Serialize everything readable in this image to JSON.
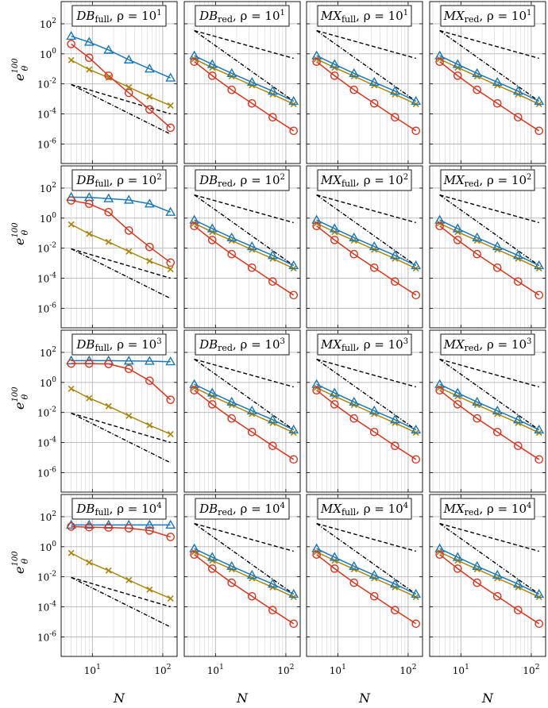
{
  "chart_data": {
    "type": "line",
    "xscale": "log",
    "yscale": "log",
    "xlim": [
      3.6,
      160
    ],
    "ylim": [
      5e-08,
      3000
    ],
    "grid": true,
    "xlabel": "N",
    "ylabel_base": "e",
    "ylabel_sub": "θ",
    "ylabel_sup": "100",
    "x_ticks": [
      {
        "base": "10",
        "exp": "1"
      },
      {
        "base": "10",
        "exp": "2"
      }
    ],
    "y_ticks": [
      {
        "base": "10",
        "exp": "2"
      },
      {
        "base": "10",
        "exp": "0"
      },
      {
        "base": "10",
        "exp": "-2"
      },
      {
        "base": "10",
        "exp": "-4"
      },
      {
        "base": "10",
        "exp": "-6"
      }
    ],
    "x": [
      5,
      9,
      17,
      33,
      65,
      129
    ],
    "series_colors": {
      "triangle": "#1a78b8",
      "circle": "#d8351f",
      "cross": "#a7860b",
      "ref": "#000000"
    },
    "panels": [
      {
        "row": 0,
        "col": 0,
        "title_main": "DB",
        "title_sub": "full",
        "title_rho": ", ρ = 10",
        "title_exp": "1",
        "triangle": [
          15,
          6,
          1.8,
          0.4,
          0.1,
          0.025
        ],
        "circle": [
          4.5,
          0.55,
          0.035,
          0.0025,
          0.0002,
          1.2e-05
        ],
        "cross": [
          0.38,
          0.09,
          0.026,
          0.006,
          0.0014,
          0.00036
        ],
        "ref_dash": [
          0.009,
          0.0001
        ],
        "ref_dashdot": [
          0.009,
          4.5e-06
        ]
      },
      {
        "row": 0,
        "col": 1,
        "title_main": "DB",
        "title_sub": "red",
        "title_rho": ", ρ = 10",
        "title_exp": "1",
        "triangle": [
          0.75,
          0.2,
          0.05,
          0.013,
          0.0033,
          0.0007
        ],
        "circle": [
          0.3,
          0.035,
          0.004,
          0.0005,
          6e-05,
          7.5e-06
        ],
        "cross": [
          0.45,
          0.12,
          0.032,
          0.008,
          0.002,
          0.00045
        ],
        "ref_dash": [
          35,
          0.5
        ],
        "ref_dashdot": [
          35,
          0.0007
        ]
      },
      {
        "row": 0,
        "col": 2,
        "title_main": "MX",
        "title_sub": "full",
        "title_rho": ", ρ = 10",
        "title_exp": "1",
        "triangle": [
          0.75,
          0.2,
          0.05,
          0.013,
          0.0033,
          0.0007
        ],
        "circle": [
          0.3,
          0.035,
          0.004,
          0.0005,
          6e-05,
          7.5e-06
        ],
        "cross": [
          0.45,
          0.12,
          0.032,
          0.008,
          0.002,
          0.00045
        ],
        "ref_dash": [
          35,
          0.5
        ],
        "ref_dashdot": [
          35,
          0.0007
        ]
      },
      {
        "row": 0,
        "col": 3,
        "title_main": "MX",
        "title_sub": "red",
        "title_rho": ", ρ = 10",
        "title_exp": "1",
        "triangle": [
          0.75,
          0.2,
          0.05,
          0.013,
          0.0033,
          0.0007
        ],
        "circle": [
          0.3,
          0.035,
          0.004,
          0.0005,
          6e-05,
          7.5e-06
        ],
        "cross": [
          0.45,
          0.12,
          0.032,
          0.008,
          0.002,
          0.00045
        ],
        "ref_dash": [
          35,
          0.5
        ],
        "ref_dashdot": [
          35,
          0.0007
        ]
      },
      {
        "row": 1,
        "col": 0,
        "title_main": "DB",
        "title_sub": "full",
        "title_rho": ", ρ = 10",
        "title_exp": "2",
        "triangle": [
          25,
          24,
          20,
          16,
          9,
          2.5
        ],
        "circle": [
          15,
          9,
          2.5,
          0.15,
          0.012,
          0.0011
        ],
        "cross": [
          0.38,
          0.09,
          0.026,
          0.006,
          0.0014,
          0.0004
        ],
        "ref_dash": [
          0.009,
          0.0001
        ],
        "ref_dashdot": [
          0.009,
          4.5e-06
        ]
      },
      {
        "row": 1,
        "col": 1,
        "title_main": "DB",
        "title_sub": "red",
        "title_rho": ", ρ = 10",
        "title_exp": "2",
        "triangle": [
          0.75,
          0.2,
          0.05,
          0.013,
          0.0033,
          0.0007
        ],
        "circle": [
          0.3,
          0.035,
          0.004,
          0.0005,
          6e-05,
          7.5e-06
        ],
        "cross": [
          0.45,
          0.12,
          0.032,
          0.008,
          0.002,
          0.00045
        ],
        "ref_dash": [
          35,
          0.5
        ],
        "ref_dashdot": [
          35,
          0.0007
        ]
      },
      {
        "row": 1,
        "col": 2,
        "title_main": "MX",
        "title_sub": "full",
        "title_rho": ", ρ = 10",
        "title_exp": "2",
        "triangle": [
          0.75,
          0.2,
          0.05,
          0.013,
          0.0033,
          0.0007
        ],
        "circle": [
          0.3,
          0.035,
          0.004,
          0.0005,
          6e-05,
          7.5e-06
        ],
        "cross": [
          0.45,
          0.12,
          0.032,
          0.008,
          0.002,
          0.00045
        ],
        "ref_dash": [
          35,
          0.5
        ],
        "ref_dashdot": [
          35,
          0.0007
        ]
      },
      {
        "row": 1,
        "col": 3,
        "title_main": "MX",
        "title_sub": "red",
        "title_rho": ", ρ = 10",
        "title_exp": "2",
        "triangle": [
          0.75,
          0.2,
          0.05,
          0.013,
          0.0033,
          0.0007
        ],
        "circle": [
          0.3,
          0.035,
          0.004,
          0.0005,
          6e-05,
          7.5e-06
        ],
        "cross": [
          0.45,
          0.12,
          0.032,
          0.008,
          0.002,
          0.00045
        ],
        "ref_dash": [
          35,
          0.5
        ],
        "ref_dashdot": [
          35,
          0.0007
        ]
      },
      {
        "row": 2,
        "col": 0,
        "title_main": "DB",
        "title_sub": "full",
        "title_rho": ", ρ = 10",
        "title_exp": "3",
        "triangle": [
          28,
          28,
          28,
          27,
          26,
          24
        ],
        "circle": [
          18,
          18,
          17,
          8,
          1.3,
          0.07
        ],
        "cross": [
          0.38,
          0.09,
          0.026,
          0.006,
          0.0014,
          0.00036
        ],
        "ref_dash": [
          0.009,
          0.0001
        ],
        "ref_dashdot": [
          0.009,
          4.5e-06
        ]
      },
      {
        "row": 2,
        "col": 1,
        "title_main": "DB",
        "title_sub": "red",
        "title_rho": ", ρ = 10",
        "title_exp": "3",
        "triangle": [
          0.75,
          0.2,
          0.05,
          0.013,
          0.0033,
          0.0007
        ],
        "circle": [
          0.3,
          0.035,
          0.004,
          0.0005,
          6e-05,
          7.5e-06
        ],
        "cross": [
          0.45,
          0.12,
          0.032,
          0.008,
          0.002,
          0.00045
        ],
        "ref_dash": [
          35,
          0.5
        ],
        "ref_dashdot": [
          35,
          0.0007
        ]
      },
      {
        "row": 2,
        "col": 2,
        "title_main": "MX",
        "title_sub": "full",
        "title_rho": ", ρ = 10",
        "title_exp": "3",
        "triangle": [
          0.75,
          0.2,
          0.05,
          0.013,
          0.0033,
          0.0007
        ],
        "circle": [
          0.3,
          0.035,
          0.004,
          0.0005,
          6e-05,
          7.5e-06
        ],
        "cross": [
          0.45,
          0.12,
          0.032,
          0.008,
          0.002,
          0.00045
        ],
        "ref_dash": [
          35,
          0.5
        ],
        "ref_dashdot": [
          35,
          0.0007
        ]
      },
      {
        "row": 2,
        "col": 3,
        "title_main": "MX",
        "title_sub": "red",
        "title_rho": ", ρ = 10",
        "title_exp": "3",
        "triangle": [
          0.75,
          0.2,
          0.05,
          0.013,
          0.0033,
          0.0007
        ],
        "circle": [
          0.3,
          0.035,
          0.004,
          0.0005,
          6e-05,
          7.5e-06
        ],
        "cross": [
          0.45,
          0.12,
          0.032,
          0.008,
          0.002,
          0.00045
        ],
        "ref_dash": [
          35,
          0.5
        ],
        "ref_dashdot": [
          35,
          0.0007
        ]
      },
      {
        "row": 3,
        "col": 0,
        "title_main": "DB",
        "title_sub": "full",
        "title_rho": ", ρ = 10",
        "title_exp": "4",
        "triangle": [
          28,
          28,
          28,
          28,
          28,
          28
        ],
        "circle": [
          22,
          20,
          19,
          17,
          12,
          4.5
        ],
        "cross": [
          0.38,
          0.09,
          0.026,
          0.006,
          0.0014,
          0.00036
        ],
        "ref_dash": [
          0.009,
          0.0001
        ],
        "ref_dashdot": [
          0.009,
          4.5e-06
        ]
      },
      {
        "row": 3,
        "col": 1,
        "title_main": "DB",
        "title_sub": "red",
        "title_rho": ", ρ = 10",
        "title_exp": "4",
        "triangle": [
          0.75,
          0.2,
          0.05,
          0.013,
          0.0033,
          0.0007
        ],
        "circle": [
          0.3,
          0.035,
          0.004,
          0.0005,
          6e-05,
          7.5e-06
        ],
        "cross": [
          0.45,
          0.12,
          0.032,
          0.008,
          0.002,
          0.00045
        ],
        "ref_dash": [
          35,
          0.5
        ],
        "ref_dashdot": [
          35,
          0.0007
        ]
      },
      {
        "row": 3,
        "col": 2,
        "title_main": "MX",
        "title_sub": "full",
        "title_rho": ", ρ = 10",
        "title_exp": "4",
        "triangle": [
          0.75,
          0.2,
          0.05,
          0.013,
          0.0033,
          0.0007
        ],
        "circle": [
          0.3,
          0.035,
          0.004,
          0.0005,
          6e-05,
          7.5e-06
        ],
        "cross": [
          0.45,
          0.12,
          0.032,
          0.008,
          0.002,
          0.00045
        ],
        "ref_dash": [
          35,
          0.5
        ],
        "ref_dashdot": [
          35,
          0.0007
        ]
      },
      {
        "row": 3,
        "col": 3,
        "title_main": "MX",
        "title_sub": "red",
        "title_rho": ", ρ = 10",
        "title_exp": "4",
        "triangle": [
          0.75,
          0.2,
          0.05,
          0.013,
          0.0033,
          0.0007
        ],
        "circle": [
          0.3,
          0.035,
          0.004,
          0.0005,
          6e-05,
          7.5e-06
        ],
        "cross": [
          0.45,
          0.12,
          0.032,
          0.008,
          0.002,
          0.00045
        ],
        "ref_dash": [
          35,
          0.5
        ],
        "ref_dashdot": [
          35,
          0.0007
        ]
      }
    ]
  }
}
